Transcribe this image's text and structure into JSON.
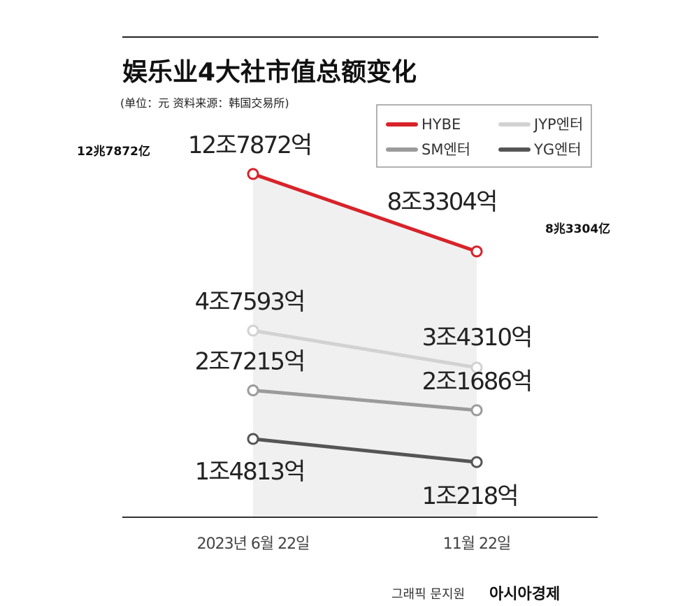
{
  "chart_data": {
    "type": "line",
    "title": "娱乐业4大社市值总额变化",
    "subtitle": "(单位：元 资料来源：韩国交易所)",
    "categories": [
      "2023년 6월 22일",
      "11월 22일"
    ],
    "unit": "억",
    "series": [
      {
        "name": "HYBE",
        "color": "#d8232a",
        "values": [
          127872,
          83304
        ],
        "labels": [
          "12조7872억",
          "8조3304억"
        ],
        "annotations": [
          "12兆7872亿",
          "8兆3304亿"
        ]
      },
      {
        "name": "JYP엔터",
        "color": "#d2d2d2",
        "values": [
          47593,
          34310
        ],
        "labels": [
          "4조7593억",
          "3조4310억"
        ]
      },
      {
        "name": "SM엔터",
        "color": "#9b9b9b",
        "values": [
          27215,
          21686
        ],
        "labels": [
          "2조7215억",
          "2조1686억"
        ]
      },
      {
        "name": "YG엔터",
        "color": "#555555",
        "values": [
          14813,
          10218
        ],
        "labels": [
          "1조4813억",
          "1조218억"
        ]
      }
    ],
    "legend": "top-right",
    "grid": false
  },
  "footer": {
    "credit": "그래픽 문지원",
    "logo": "아시아경제"
  }
}
